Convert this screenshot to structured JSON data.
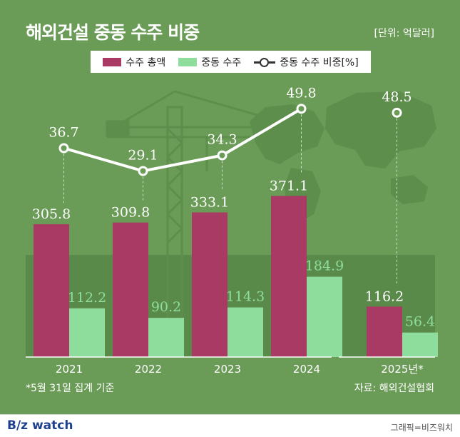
{
  "header": {
    "title": "해외건설 중동 수주 비중",
    "unit": "[단위: 억달러]"
  },
  "legend": {
    "total_label": "수주 총액",
    "mideast_label": "중동 수주",
    "share_label": "중동 수주 비중[%]"
  },
  "footer": {
    "footnote": "*5월 31일 집계 기준",
    "source": "자료: 해외건설협회",
    "brand": "B/z watch",
    "credit": "그래픽=비즈워치"
  },
  "colors": {
    "background": "#6a9b57",
    "total_bar": "#a83a64",
    "mideast_bar": "#8fdd9d",
    "share_line": "#ffffff"
  },
  "chart_data": {
    "type": "bar",
    "categories": [
      "2021",
      "2022",
      "2023",
      "2024",
      "2025년*"
    ],
    "series": [
      {
        "name": "수주 총액",
        "kind": "bar",
        "values": [
          305.8,
          309.8,
          333.1,
          371.1,
          116.2
        ],
        "labels": [
          "305.8",
          "309.8",
          "333.1",
          "371.1",
          "116.2"
        ]
      },
      {
        "name": "중동 수주",
        "kind": "bar",
        "values": [
          112.2,
          90.2,
          114.3,
          184.9,
          56.4
        ],
        "labels": [
          "112.2",
          "90.2",
          "114.3",
          "184.9",
          "56.4"
        ]
      },
      {
        "name": "중동 수주 비중[%]",
        "kind": "line",
        "values": [
          36.7,
          29.1,
          34.3,
          49.8,
          48.5
        ],
        "labels": [
          "36.7",
          "29.1",
          "34.3",
          "49.8",
          "48.5"
        ],
        "connected_points": 4
      }
    ],
    "bar_ylim": [
      0,
      410
    ],
    "line_ylim": [
      0,
      60
    ],
    "xlabel": "",
    "ylabel": "억달러"
  }
}
